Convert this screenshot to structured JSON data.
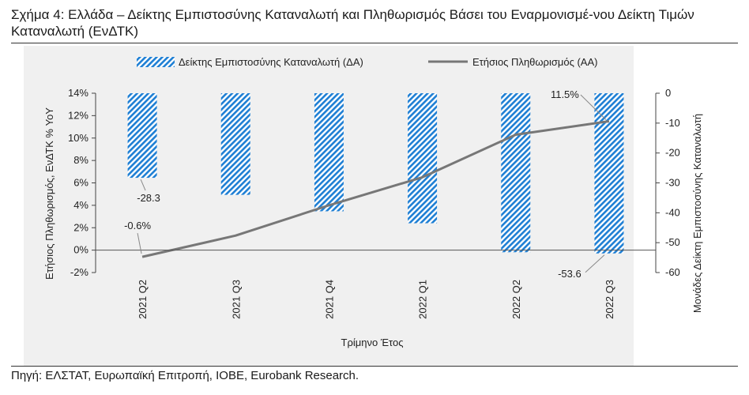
{
  "title": "Σχήμα 4: Ελλάδα – Δείκτης Εμπιστοσύνης Καταναλωτή και Πληθωρισμός Βάσει του Εναρμονισμέ-νου Δείκτη Τιμών Καταναλωτή (ΕνΔΤΚ)",
  "source": "Πηγή: ΕΛΣΤΑΤ, Ευρωπαϊκή Επιτροπή, ΙΟΒΕ, Eurobank Research.",
  "colors": {
    "bar": "#1e7fd4",
    "line": "#777777"
  },
  "chart_data": {
    "type": "bar+line",
    "categories": [
      "2021 Q2",
      "2021 Q3",
      "2021 Q4",
      "2022 Q1",
      "2022 Q2",
      "2022 Q3"
    ],
    "xlabel": "Τρίμηνο Έτος",
    "ylabel_left": "Ετήσιος Πληθωρισμός, ΕνΔΤΚ % YoY",
    "ylabel_right": "Μονάδες Δείκτη Εμπιστοσύνης Καταναλωτή",
    "ylim_left": [
      -2,
      14
    ],
    "ylim_right": [
      -60,
      0
    ],
    "left_ticks": [
      "-2%",
      "0%",
      "2%",
      "4%",
      "6%",
      "8%",
      "10%",
      "12%",
      "14%"
    ],
    "right_ticks": [
      "0",
      "-10",
      "-20",
      "-30",
      "-40",
      "-50",
      "-60"
    ],
    "legend_position": "top",
    "series": [
      {
        "name": "Δείκτης Εμπιστοσύνης Καταναλωτή (ΔΑ)",
        "type": "bar",
        "axis": "right",
        "values": [
          -28.3,
          -34.0,
          -39.5,
          -43.5,
          -53.2,
          -53.6
        ]
      },
      {
        "name": "Ετήσιος Πληθωρισμός (ΑΑ)",
        "type": "line",
        "axis": "left",
        "values": [
          -0.6,
          1.3,
          4.0,
          6.5,
          10.3,
          11.5
        ]
      }
    ],
    "annotations": [
      {
        "text": "-28.3",
        "category": "2021 Q2"
      },
      {
        "text": "-0.6%",
        "category": "2021 Q2"
      },
      {
        "text": "11.5%",
        "category": "2022 Q3"
      },
      {
        "text": "-53.6",
        "category": "2022 Q3"
      }
    ]
  }
}
